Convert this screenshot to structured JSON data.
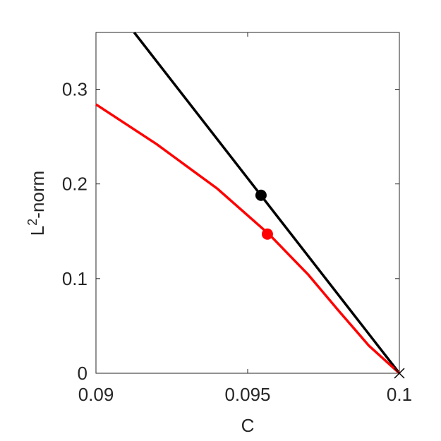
{
  "chart_data": {
    "type": "line",
    "xlabel": "C",
    "ylabel": {
      "base": "L",
      "sup": "2",
      "rest": "-norm"
    },
    "xlim": [
      0.09,
      0.1
    ],
    "ylim": [
      0,
      0.36
    ],
    "xticks": [
      0.09,
      0.095,
      0.1
    ],
    "yticks": [
      0,
      0.1,
      0.2,
      0.3
    ],
    "series": [
      {
        "color": "#000000",
        "x": [
          0.09126,
          0.1
        ],
        "values": [
          0.36,
          0
        ]
      },
      {
        "color": "#ff0000",
        "x": [
          0.09,
          0.092,
          0.094,
          0.0957,
          0.097,
          0.098,
          0.099,
          0.1
        ],
        "values": [
          0.284,
          0.242,
          0.195,
          0.147,
          0.104,
          0.066,
          0.029,
          0
        ]
      }
    ],
    "markers": [
      {
        "shape": "circle",
        "color": "#000000",
        "x": 0.09544,
        "y": 0.188
      },
      {
        "shape": "circle",
        "color": "#ff0000",
        "x": 0.09565,
        "y": 0.147
      },
      {
        "shape": "cross",
        "color": "#000000",
        "x": 0.1,
        "y": 0
      }
    ]
  }
}
